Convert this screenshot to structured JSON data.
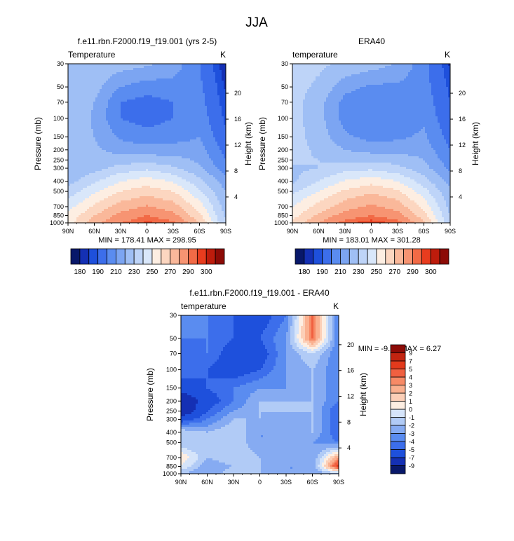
{
  "figure_title": "JJA",
  "panels": [
    {
      "title": "f.e11.rbn.F2000.f19_f19.001 (yrs 2-5)",
      "left_label": "Temperature",
      "right_label": "K",
      "minmax": "MIN = 178.41  MAX = 298.95"
    },
    {
      "title": "ERA40",
      "left_label": "temperature",
      "right_label": "K",
      "minmax": "MIN = 183.01  MAX = 301.28"
    },
    {
      "title": "f.e11.rbn.F2000.f19_f19.001 - ERA40",
      "left_label": "temperature",
      "right_label": "K",
      "minmax": "MIN =  -9.29  MAX =  6.27"
    }
  ],
  "axes": {
    "ylabel_left": "Pressure (mb)",
    "ylabel_right": "Height (km)",
    "x_ticks": [
      "90N",
      "60N",
      "30N",
      "0",
      "30S",
      "60S",
      "90S"
    ],
    "p_ticks": [
      "30",
      "50",
      "70",
      "100",
      "150",
      "200",
      "250",
      "300",
      "400",
      "500",
      "700",
      "850",
      "1000"
    ],
    "h_ticks": [
      "20",
      "16",
      "12",
      "8",
      "4"
    ]
  },
  "colorbars": {
    "absolute": {
      "colors": [
        "#08186a",
        "#1430b4",
        "#1e50dc",
        "#3c6eeb",
        "#5a8cf0",
        "#7ca5f2",
        "#9fbff5",
        "#bed4f8",
        "#d9e7fa",
        "#fdeee2",
        "#fcd6c0",
        "#fab89a",
        "#f79472",
        "#f26a46",
        "#e83c1e",
        "#bd1c0c",
        "#8c0b06"
      ],
      "labels": [
        "180",
        "190",
        "210",
        "230",
        "250",
        "270",
        "290",
        "300"
      ]
    },
    "difference": {
      "colors": [
        "#08186a",
        "#1430b4",
        "#1e50dc",
        "#3c6eeb",
        "#5a8cf0",
        "#86abf2",
        "#b1cbf6",
        "#d5e4fa",
        "#fdeee2",
        "#fccfb7",
        "#fab08f",
        "#f78a66",
        "#f06040",
        "#e33a1c",
        "#c22410",
        "#8c0b06"
      ],
      "labels": [
        "-9",
        "-7",
        "-5",
        "-4",
        "-3",
        "-2",
        "-1",
        "0",
        "1",
        "2",
        "3",
        "4",
        "5",
        "7",
        "9"
      ]
    }
  },
  "chart_data": [
    {
      "type": "heatmap",
      "title": "f.e11.rbn.F2000.f19_f19.001 (yrs 2-5)",
      "xlabel": "",
      "ylabel": "Pressure (mb)",
      "x": [
        "90N",
        "60N",
        "30N",
        "0",
        "30S",
        "60S",
        "90S"
      ],
      "y_pressure": [
        1000,
        850,
        700,
        500,
        400,
        300,
        250,
        200,
        150,
        100,
        70,
        50,
        30
      ],
      "values": [
        [
          255,
          276,
          290,
          296,
          292,
          270,
          230
        ],
        [
          252,
          270,
          283,
          290,
          284,
          262,
          228
        ],
        [
          246,
          262,
          275,
          281,
          275,
          255,
          225
        ],
        [
          234,
          248,
          260,
          266,
          260,
          242,
          220
        ],
        [
          226,
          238,
          250,
          255,
          249,
          233,
          214
        ],
        [
          220,
          226,
          234,
          238,
          232,
          222,
          205
        ],
        [
          220,
          224,
          225,
          226,
          224,
          218,
          200
        ],
        [
          225,
          222,
          216,
          214,
          214,
          214,
          196
        ],
        [
          228,
          220,
          208,
          204,
          206,
          210,
          192
        ],
        [
          230,
          218,
          200,
          196,
          200,
          206,
          188
        ],
        [
          230,
          220,
          200,
          196,
          200,
          204,
          186
        ],
        [
          230,
          224,
          210,
          205,
          206,
          202,
          184
        ],
        [
          230,
          228,
          225,
          222,
          216,
          200,
          180
        ]
      ],
      "levels": [
        180,
        185,
        190,
        200,
        210,
        220,
        230,
        240,
        250,
        260,
        270,
        280,
        290,
        295,
        300
      ],
      "min": 178.41,
      "max": 298.95,
      "units": "K"
    },
    {
      "type": "heatmap",
      "title": "ERA40",
      "xlabel": "",
      "ylabel": "Pressure (mb)",
      "x": [
        "90N",
        "60N",
        "30N",
        "0",
        "30S",
        "60S",
        "90S"
      ],
      "y_pressure": [
        1000,
        850,
        700,
        500,
        400,
        300,
        250,
        200,
        150,
        100,
        70,
        50,
        30
      ],
      "values": [
        [
          262,
          280,
          293,
          298,
          293,
          272,
          232
        ],
        [
          256,
          272,
          285,
          290,
          285,
          264,
          230
        ],
        [
          250,
          264,
          276,
          282,
          276,
          257,
          226
        ],
        [
          238,
          250,
          262,
          268,
          262,
          244,
          222
        ],
        [
          228,
          240,
          251,
          256,
          250,
          235,
          216
        ],
        [
          228,
          230,
          236,
          238,
          233,
          224,
          208
        ],
        [
          232,
          230,
          228,
          228,
          226,
          220,
          204
        ],
        [
          234,
          228,
          220,
          216,
          216,
          216,
          200
        ],
        [
          234,
          226,
          212,
          206,
          208,
          212,
          196
        ],
        [
          234,
          224,
          206,
          200,
          202,
          208,
          192
        ],
        [
          234,
          224,
          206,
          200,
          202,
          206,
          190
        ],
        [
          234,
          228,
          214,
          208,
          208,
          204,
          188
        ],
        [
          234,
          232,
          228,
          225,
          219,
          204,
          184
        ]
      ],
      "levels": [
        180,
        185,
        190,
        200,
        210,
        220,
        230,
        240,
        250,
        260,
        270,
        280,
        290,
        295,
        300
      ],
      "min": 183.01,
      "max": 301.28,
      "units": "K"
    },
    {
      "type": "heatmap",
      "title": "f.e11.rbn.F2000.f19_f19.001 - ERA40",
      "xlabel": "",
      "ylabel": "Pressure (mb)",
      "x": [
        "90N",
        "60N",
        "30N",
        "0",
        "30S",
        "60S",
        "90S"
      ],
      "y_pressure": [
        1000,
        850,
        700,
        500,
        400,
        300,
        250,
        200,
        150,
        100,
        70,
        50,
        30
      ],
      "values": [
        [
          -2,
          -3,
          -1,
          -2,
          -3,
          -3,
          -2
        ],
        [
          0,
          -3,
          -2,
          -2,
          -3,
          -3,
          6
        ],
        [
          1,
          -2,
          -1,
          -2,
          -2,
          -3,
          3
        ],
        [
          -2,
          -2,
          -1,
          -3,
          -3,
          -3,
          -4
        ],
        [
          -1,
          -2,
          -1,
          -3,
          -3,
          -2,
          -5
        ],
        [
          -6,
          -4,
          -2,
          -2,
          -3,
          -2,
          -5
        ],
        [
          -9,
          -5,
          -3,
          -2,
          -2,
          -2,
          -5
        ],
        [
          -9,
          -6,
          -4,
          -2,
          -2,
          -2,
          -4
        ],
        [
          -6,
          -5,
          -4,
          -3,
          -3,
          -2,
          -4
        ],
        [
          -4,
          -5,
          -6,
          -5,
          -3,
          -2,
          -4
        ],
        [
          -5,
          -4,
          -6,
          -6,
          -3,
          -1,
          -4
        ],
        [
          -4,
          -4,
          -5,
          -5,
          -3,
          4,
          -4
        ],
        [
          -3,
          -4,
          -5,
          -6,
          -4,
          4,
          -4
        ]
      ],
      "levels": [
        -9,
        -7,
        -5,
        -4,
        -3,
        -2,
        -1,
        0,
        1,
        2,
        3,
        4,
        5,
        7,
        9
      ],
      "min": -9.29,
      "max": 6.27,
      "units": "K"
    }
  ]
}
